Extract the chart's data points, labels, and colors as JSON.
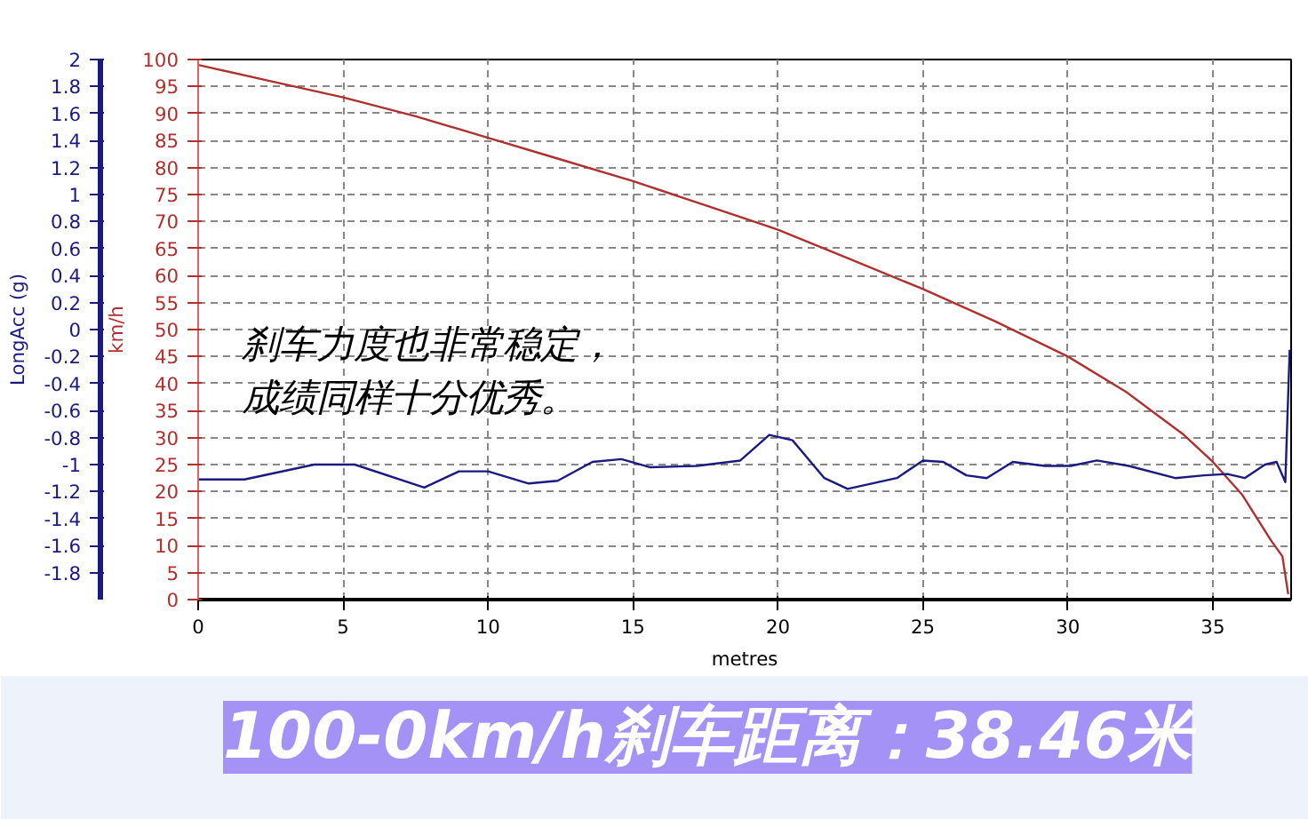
{
  "chart_data": {
    "type": "line",
    "xlabel": "metres",
    "ylabel": "km/h",
    "y2label": "LongAcc (g)",
    "xlim": [
      0,
      37.7
    ],
    "xticks": [
      0,
      5,
      10,
      15,
      20,
      25,
      30,
      35
    ],
    "ylim": [
      0,
      100
    ],
    "yticks": [
      0,
      5,
      10,
      15,
      20,
      25,
      30,
      35,
      40,
      45,
      50,
      55,
      60,
      65,
      70,
      75,
      80,
      85,
      90,
      95,
      100
    ],
    "y2lim": [
      -2,
      2
    ],
    "y2ticks": [
      -1.8,
      -1.6,
      -1.4,
      -1.2,
      -1,
      -0.8,
      -0.6,
      -0.4,
      -0.2,
      0,
      0.2,
      0.4,
      0.6,
      0.8,
      1,
      1.2,
      1.4,
      1.6,
      1.8,
      2
    ],
    "grid": true,
    "line_style": "solid",
    "series": [
      {
        "color": "#b03030",
        "x": [
          0,
          2.5,
          5,
          7.5,
          10,
          12.5,
          15,
          17.5,
          20,
          22.5,
          25,
          27.5,
          30,
          32,
          34,
          35,
          36,
          37,
          37.4,
          37.6
        ],
        "values": [
          99,
          96,
          93,
          89.5,
          85.5,
          81.5,
          77.5,
          73,
          68.5,
          63,
          57.5,
          51.5,
          45,
          38.5,
          30.5,
          25.5,
          19.5,
          11,
          8,
          1
        ]
      },
      {
        "color": "#1a1a80",
        "axis": "y2",
        "x": [
          0,
          1.6,
          4.0,
          5.4,
          7.8,
          9.0,
          10,
          11.4,
          12.4,
          13.6,
          14.6,
          15.6,
          17.2,
          18.7,
          19.7,
          20.5,
          21.6,
          22.4,
          24.1,
          25.0,
          25.7,
          26.5,
          27.2,
          28.1,
          29.2,
          30.1,
          31.0,
          32.1,
          33.7,
          34.7,
          35.5,
          36.1,
          36.8,
          37.2,
          37.5,
          37.65
        ],
        "values": [
          -1.11,
          -1.11,
          -1.0,
          -1.0,
          -1.17,
          -1.05,
          -1.05,
          -1.14,
          -1.12,
          -0.98,
          -0.96,
          -1.02,
          -1.01,
          -0.97,
          -0.78,
          -0.82,
          -1.1,
          -1.18,
          -1.1,
          -0.97,
          -0.98,
          -1.08,
          -1.1,
          -0.98,
          -1.01,
          -1.01,
          -0.97,
          -1.01,
          -1.1,
          -1.08,
          -1.07,
          -1.1,
          -1.0,
          -0.98,
          -1.13,
          -0.15
        ]
      }
    ],
    "annotations": [
      "刹车力度也非常稳定，",
      "成绩同样十分优秀。",
      "100-0km/h刹车距离：38.46米"
    ]
  }
}
